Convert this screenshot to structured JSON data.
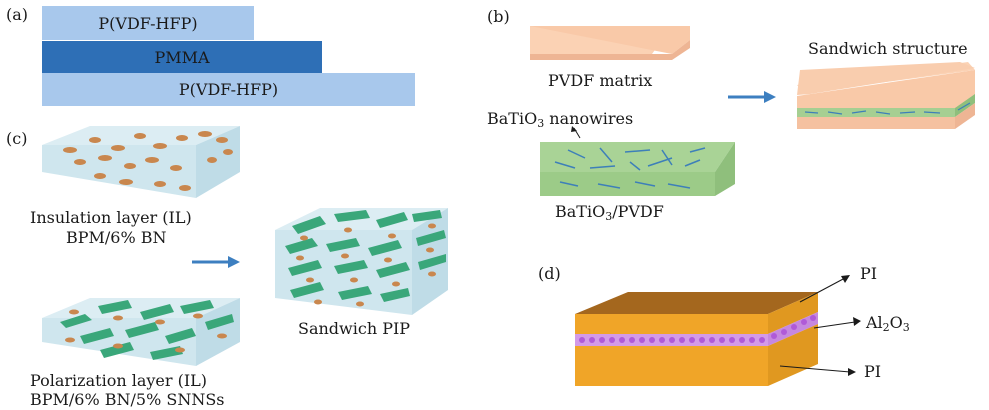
{
  "panels": {
    "a": {
      "label": "(a)",
      "layers": [
        "P(VDF-HFP)",
        "PMMA",
        "P(VDF-HFP)"
      ],
      "colors": {
        "outer": "#a8c8ec",
        "middle": "#2e6fb6"
      }
    },
    "b": {
      "label": "(b)",
      "matrix_label": "PVDF matrix",
      "nanowire_label_main": "BaTiO",
      "nanowire_label_sub": "3",
      "nanowire_label_rest": " nanowires",
      "composite_label_main": "BaTiO",
      "composite_label_sub": "3",
      "composite_label_rest": "/PVDF",
      "sandwich_label": "Sandwich structure",
      "colors": {
        "matrix": "#f9c9a8",
        "composite": "#a6cf92",
        "wire": "#3d7fb9"
      }
    },
    "c": {
      "label": "(c)",
      "il_label_1": "Insulation layer (IL)",
      "il_label_2": "BPM/6% BN",
      "pl_label_1": "Polarization layer (IL)",
      "pl_label_2": "BPM/6% BN/5% SNNSs",
      "sandwich_label": "Sandwich PIP",
      "colors": {
        "box": "#cfe6ee",
        "flake": "#c9874e",
        "sheet": "#3aa77a"
      }
    },
    "d": {
      "label": "(d)",
      "top_label": "PI",
      "mid_label_main": "Al",
      "mid_label_sub1": "2",
      "mid_label_o": "O",
      "mid_label_sub2": "3",
      "bottom_label": "PI",
      "colors": {
        "pi_top": "#a4671e",
        "pi_side": "#f0a528",
        "alumina": "#b05ad8"
      }
    }
  },
  "arrow_color": "#3d7fc0"
}
